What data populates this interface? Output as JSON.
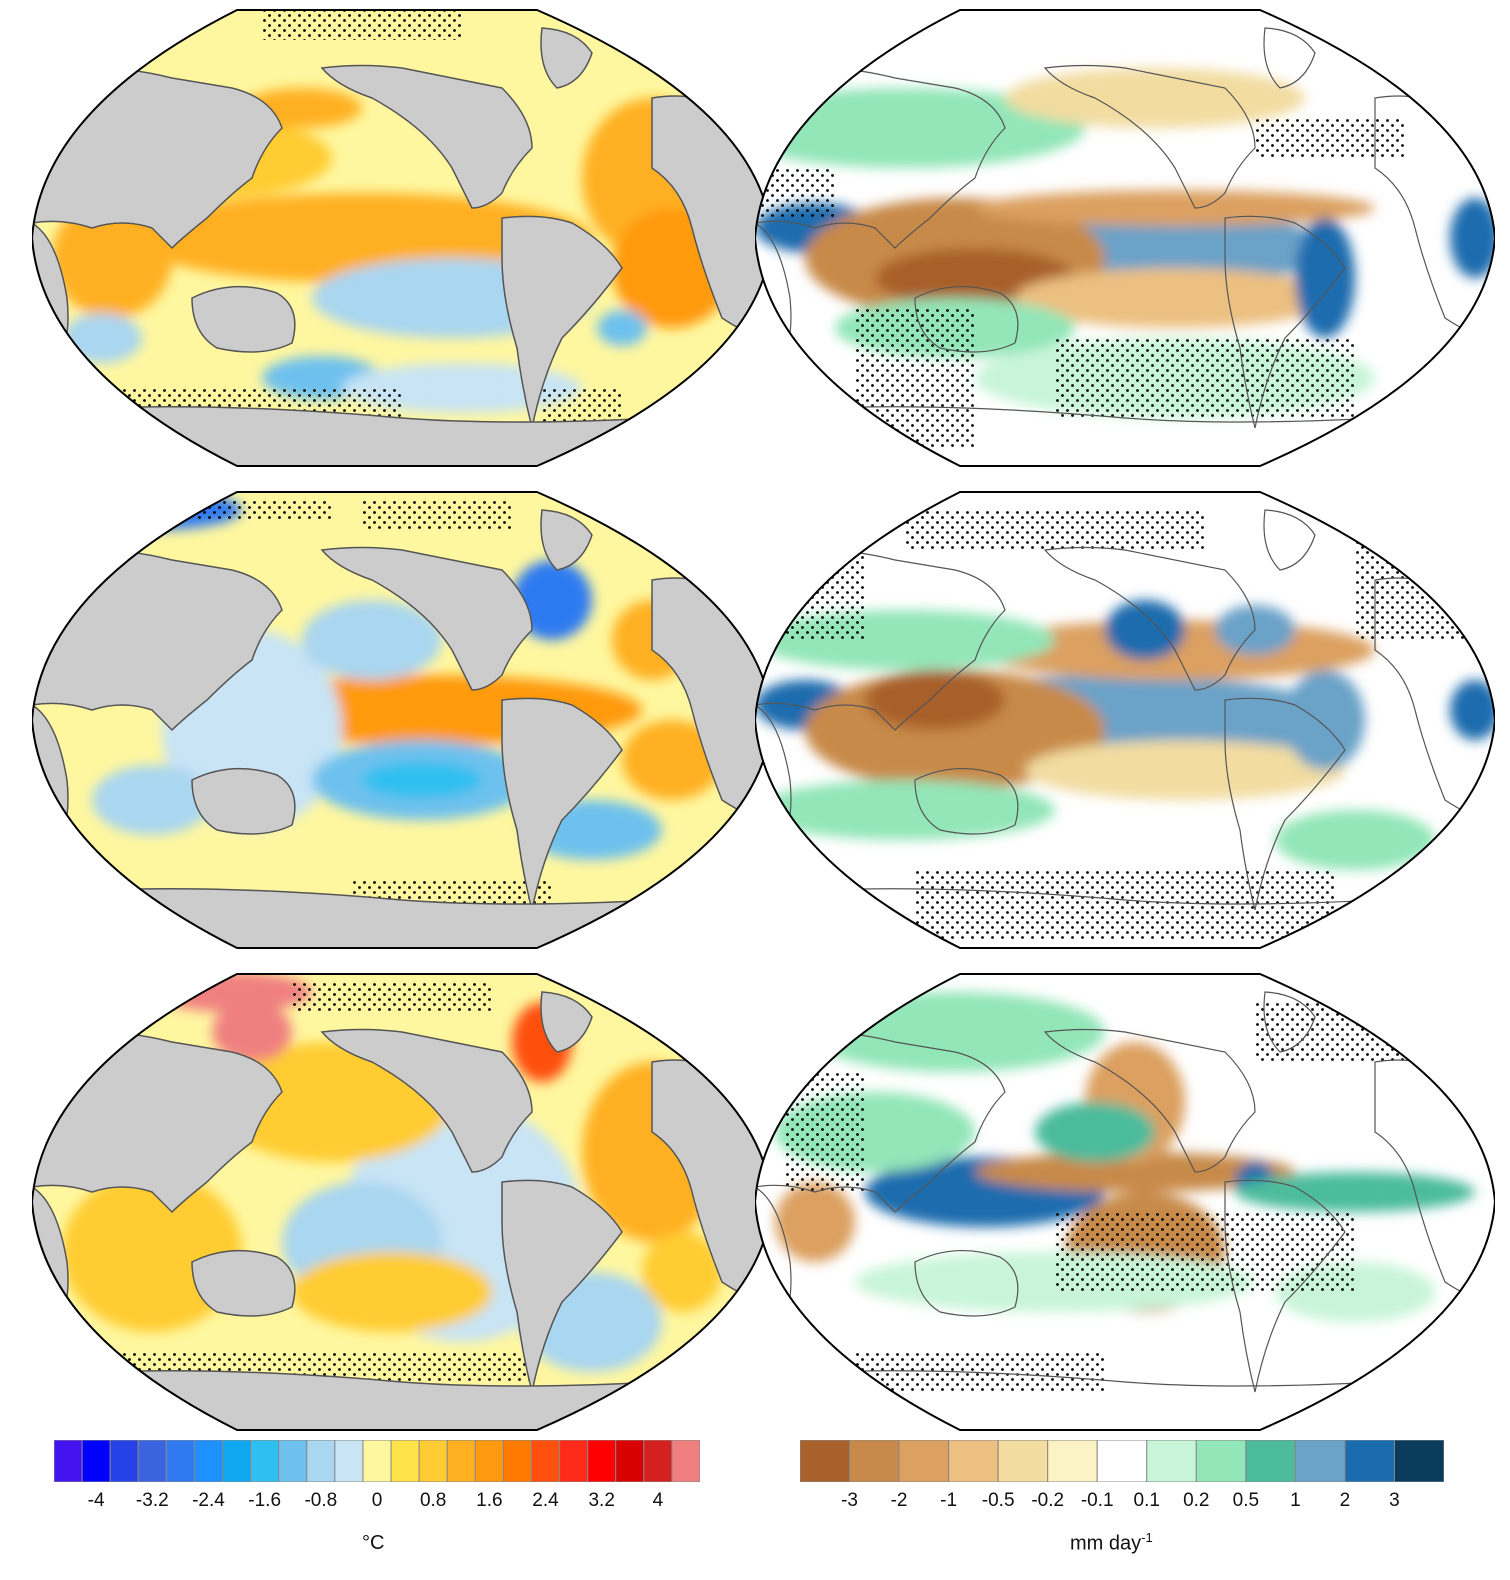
{
  "sst_colorbar": {
    "colors": [
      "#4414f0",
      "#0000ff",
      "#2642e6",
      "#3a63e0",
      "#2f7af0",
      "#1e90ff",
      "#10a8f0",
      "#2ec0f0",
      "#6ec1ee",
      "#a9d6f0",
      "#c8e4f5",
      "#fff7a0",
      "#ffe34a",
      "#ffcc33",
      "#ffb020",
      "#ff9a10",
      "#ff7a00",
      "#ff5010",
      "#ff2a1a",
      "#ff0000",
      "#d80000",
      "#d42020",
      "#f08080"
    ],
    "tick_labels": [
      "-4",
      "-3.2",
      "-2.4",
      "-1.6",
      "-0.8",
      "0",
      "0.8",
      "1.6",
      "2.4",
      "3.2",
      "4"
    ],
    "unit": "°C"
  },
  "precip_colorbar": {
    "colors": [
      "#a8612a",
      "#c88a4a",
      "#dca060",
      "#ecc080",
      "#f2dca0",
      "#fbf3c4",
      "#ffffff",
      "#c8f5d8",
      "#92e6b8",
      "#4cbc9c",
      "#6aa2c8",
      "#1a6cae",
      "#0a3a5c"
    ],
    "tick_labels": [
      "-3",
      "-2",
      "-1",
      "-0.5",
      "-0.2",
      "-0.1",
      "0.1",
      "0.2",
      "0.5",
      "1",
      "2",
      "3"
    ],
    "unit_main": "mm day",
    "unit_sup": "-1"
  },
  "colors": {
    "land": "#cccccc",
    "coast": "#555555",
    "outline": "#000000",
    "stipple": "#000000"
  }
}
